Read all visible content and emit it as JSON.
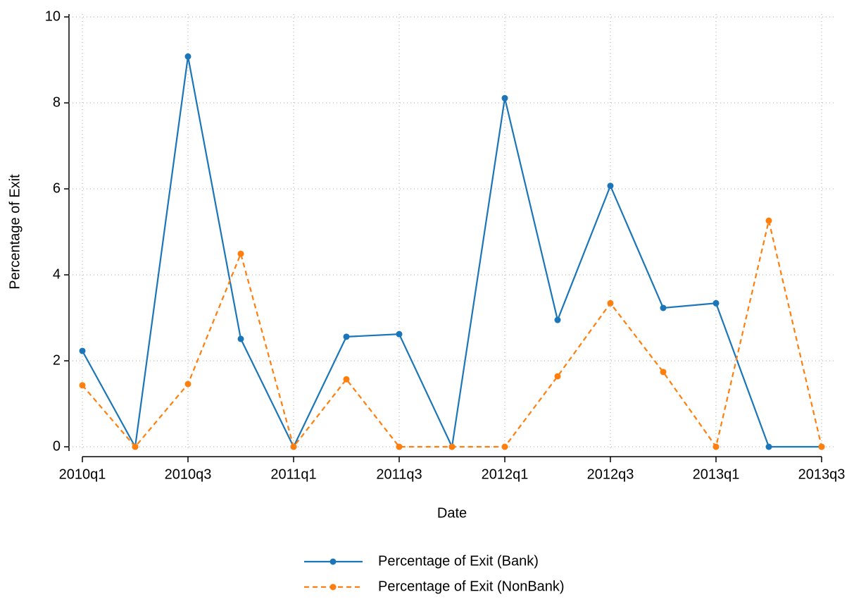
{
  "chart_data": {
    "type": "line",
    "x_label": "Date",
    "y_label": "Percentage of Exit",
    "categories": [
      "2010q1",
      null,
      "2010q3",
      null,
      "2011q1",
      null,
      "2011q3",
      null,
      "2012q1",
      null,
      "2012q3",
      null,
      "2013q1",
      null,
      "2013q3"
    ],
    "series": [
      {
        "name": "Percentage of Exit (Bank)",
        "color": "#1a76b8",
        "line_style": "solid",
        "values": [
          2.23,
          0,
          9.08,
          2.51,
          0,
          2.56,
          2.62,
          0,
          8.11,
          2.95,
          6.07,
          3.23,
          3.34,
          0,
          0
        ]
      },
      {
        "name": "Percentage of Exit (NonBank)",
        "color": "#ff7f0e",
        "line_style": "dashed",
        "values": [
          1.43,
          0,
          1.46,
          4.49,
          0,
          1.57,
          0,
          0,
          0,
          1.64,
          3.34,
          1.74,
          0,
          5.26,
          0
        ]
      }
    ],
    "ylim": [
      0,
      10
    ],
    "yticks": [
      0,
      2,
      4,
      6,
      8,
      10
    ],
    "grid": true,
    "legend": "bottom"
  }
}
